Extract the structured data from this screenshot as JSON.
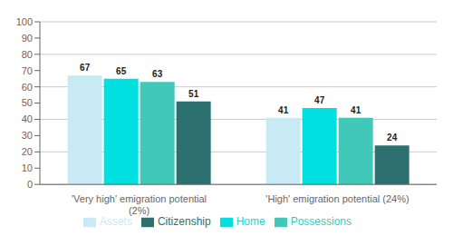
{
  "chart_data": {
    "type": "bar",
    "categories": [
      "'Very high' emigration potential\n(2%)",
      "'High' emigration potential (24%)"
    ],
    "series": [
      {
        "name": "Assets",
        "color": "#c8eaf5",
        "values": [
          67,
          41
        ]
      },
      {
        "name": "Home",
        "color": "#00e0e0",
        "values": [
          65,
          47
        ]
      },
      {
        "name": "Possessions",
        "color": "#40c8b8",
        "values": [
          63,
          41
        ]
      },
      {
        "name": "Citizenship",
        "color": "#2d7070",
        "values": [
          51,
          24
        ]
      }
    ],
    "ylim": [
      0,
      100
    ],
    "yticks": [
      0,
      10,
      20,
      30,
      40,
      50,
      60,
      70,
      80,
      90,
      100
    ],
    "grid": true,
    "data_labels": true,
    "legend": "bottom"
  }
}
